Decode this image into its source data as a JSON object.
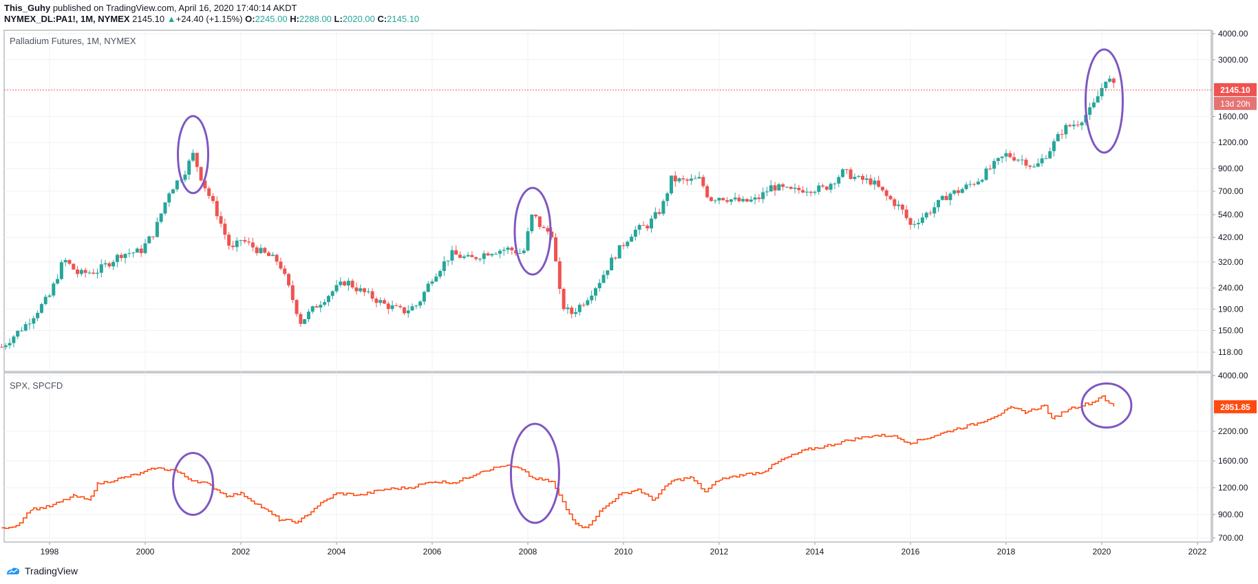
{
  "header": {
    "author": "This_Guhy",
    "published_text": "published on TradingView.com, April 16, 2020 17:40:14 AKDT",
    "symbol": "NYMEX_DL:PA1!, 1M, NYMEX",
    "last": "2145.10",
    "change": "+24.40 (+1.15%)",
    "o_label": "O:",
    "o": "2245.00",
    "h_label": "H:",
    "h": "2288.00",
    "l_label": "L:",
    "l": "2020.00",
    "c_label": "C:",
    "c": "2145.10"
  },
  "footer": {
    "brand": "TradingView"
  },
  "colors": {
    "up": "#26a69a",
    "down": "#ef5350",
    "spx": "#ff4a0f",
    "annotation": "#7e57c2",
    "price_line": "#ef5350"
  },
  "chart_data": [
    {
      "type": "candlestick",
      "title": "Palladium Futures, 1M, NYMEX",
      "y_scale": "log",
      "y_ticks": [
        118,
        150,
        190,
        240,
        320,
        420,
        540,
        700,
        900,
        1200,
        1600,
        2145.1,
        3000,
        4000
      ],
      "y_tick_labels": [
        "118.00",
        "150.00",
        "190.00",
        "240.00",
        "320.00",
        "420.00",
        "540.00",
        "700.00",
        "900.00",
        "1200.00",
        "1600.00",
        "3000.00",
        "4000.00"
      ],
      "last_price_label": "2145.10",
      "countdown_label": "13d 20h",
      "series": [
        {
          "name": "Palladium",
          "points": [
            [
              1997.0,
              125
            ],
            [
              1997.5,
              160
            ],
            [
              1998.0,
              220
            ],
            [
              1998.3,
              330
            ],
            [
              1998.6,
              280
            ],
            [
              1999.0,
              290
            ],
            [
              1999.5,
              350
            ],
            [
              1999.9,
              360
            ],
            [
              2000.2,
              450
            ],
            [
              2000.5,
              700
            ],
            [
              2000.8,
              850
            ],
            [
              2001.0,
              1050
            ],
            [
              2001.2,
              780
            ],
            [
              2001.5,
              550
            ],
            [
              2001.8,
              360
            ],
            [
              2002.0,
              410
            ],
            [
              2002.4,
              360
            ],
            [
              2002.8,
              320
            ],
            [
              2003.0,
              240
            ],
            [
              2003.25,
              165
            ],
            [
              2003.6,
              200
            ],
            [
              2003.9,
              230
            ],
            [
              2004.2,
              260
            ],
            [
              2004.4,
              240
            ],
            [
              2004.7,
              220
            ],
            [
              2005.0,
              200
            ],
            [
              2005.4,
              185
            ],
            [
              2005.7,
              200
            ],
            [
              2006.0,
              270
            ],
            [
              2006.4,
              350
            ],
            [
              2006.8,
              330
            ],
            [
              2007.2,
              360
            ],
            [
              2007.6,
              370
            ],
            [
              2007.9,
              350
            ],
            [
              2008.1,
              550
            ],
            [
              2008.3,
              460
            ],
            [
              2008.5,
              440
            ],
            [
              2008.7,
              200
            ],
            [
              2008.9,
              180
            ],
            [
              2009.2,
              210
            ],
            [
              2009.5,
              260
            ],
            [
              2009.8,
              340
            ],
            [
              2010.2,
              450
            ],
            [
              2010.5,
              480
            ],
            [
              2010.8,
              580
            ],
            [
              2011.0,
              800
            ],
            [
              2011.3,
              780
            ],
            [
              2011.6,
              800
            ],
            [
              2011.8,
              640
            ],
            [
              2012.0,
              660
            ],
            [
              2012.5,
              620
            ],
            [
              2012.8,
              640
            ],
            [
              2013.1,
              740
            ],
            [
              2013.5,
              700
            ],
            [
              2013.8,
              720
            ],
            [
              2014.2,
              720
            ],
            [
              2014.6,
              870
            ],
            [
              2014.9,
              800
            ],
            [
              2015.2,
              780
            ],
            [
              2015.5,
              660
            ],
            [
              2015.8,
              580
            ],
            [
              2016.0,
              480
            ],
            [
              2016.4,
              560
            ],
            [
              2016.8,
              680
            ],
            [
              2017.0,
              700
            ],
            [
              2017.4,
              790
            ],
            [
              2017.8,
              960
            ],
            [
              2018.0,
              1050
            ],
            [
              2018.4,
              980
            ],
            [
              2018.6,
              900
            ],
            [
              2018.9,
              1100
            ],
            [
              2019.2,
              1400
            ],
            [
              2019.5,
              1500
            ],
            [
              2019.8,
              1750
            ],
            [
              2020.0,
              2200
            ],
            [
              2020.1,
              2500
            ],
            [
              2020.3,
              2145.1
            ]
          ]
        }
      ]
    },
    {
      "type": "line",
      "title": "SPX, SPCFD",
      "y_scale": "log",
      "y_tick_labels": [
        "700.00",
        "900.00",
        "1200.00",
        "1600.00",
        "2200.00",
        "4000.00"
      ],
      "last_price_label": "2851.85",
      "x_tick_labels": [
        "1998",
        "2000",
        "2002",
        "2004",
        "2006",
        "2008",
        "2010",
        "2012",
        "2014",
        "2016",
        "2018",
        "2020",
        "2022"
      ],
      "series": [
        {
          "name": "SPX",
          "points": [
            [
              1997.0,
              780
            ],
            [
              1997.3,
              800
            ],
            [
              1997.6,
              950
            ],
            [
              1998.0,
              980
            ],
            [
              1998.5,
              1100
            ],
            [
              1998.8,
              1050
            ],
            [
              1999.0,
              1250
            ],
            [
              1999.5,
              1330
            ],
            [
              1999.9,
              1400
            ],
            [
              2000.2,
              1480
            ],
            [
              2000.6,
              1450
            ],
            [
              2000.9,
              1320
            ],
            [
              2001.3,
              1250
            ],
            [
              2001.7,
              1100
            ],
            [
              2002.0,
              1130
            ],
            [
              2002.5,
              950
            ],
            [
              2002.8,
              850
            ],
            [
              2003.2,
              830
            ],
            [
              2003.6,
              990
            ],
            [
              2004.0,
              1130
            ],
            [
              2004.5,
              1110
            ],
            [
              2005.0,
              1180
            ],
            [
              2005.5,
              1200
            ],
            [
              2006.0,
              1280
            ],
            [
              2006.5,
              1270
            ],
            [
              2007.0,
              1430
            ],
            [
              2007.5,
              1520
            ],
            [
              2007.8,
              1480
            ],
            [
              2008.1,
              1330
            ],
            [
              2008.5,
              1280
            ],
            [
              2008.8,
              950
            ],
            [
              2009.0,
              820
            ],
            [
              2009.2,
              780
            ],
            [
              2009.5,
              930
            ],
            [
              2009.9,
              1110
            ],
            [
              2010.3,
              1180
            ],
            [
              2010.6,
              1050
            ],
            [
              2011.0,
              1290
            ],
            [
              2011.4,
              1340
            ],
            [
              2011.7,
              1150
            ],
            [
              2012.0,
              1310
            ],
            [
              2012.5,
              1380
            ],
            [
              2012.9,
              1420
            ],
            [
              2013.3,
              1620
            ],
            [
              2013.8,
              1800
            ],
            [
              2014.2,
              1870
            ],
            [
              2014.7,
              2000
            ],
            [
              2015.2,
              2100
            ],
            [
              2015.6,
              2100
            ],
            [
              2016.0,
              1940
            ],
            [
              2016.5,
              2100
            ],
            [
              2016.9,
              2240
            ],
            [
              2017.4,
              2400
            ],
            [
              2017.9,
              2680
            ],
            [
              2018.1,
              2830
            ],
            [
              2018.4,
              2700
            ],
            [
              2018.8,
              2900
            ],
            [
              2018.95,
              2510
            ],
            [
              2019.3,
              2800
            ],
            [
              2019.8,
              3000
            ],
            [
              2020.0,
              3220
            ],
            [
              2020.15,
              2950
            ],
            [
              2020.25,
              2851.85
            ]
          ]
        }
      ]
    }
  ]
}
